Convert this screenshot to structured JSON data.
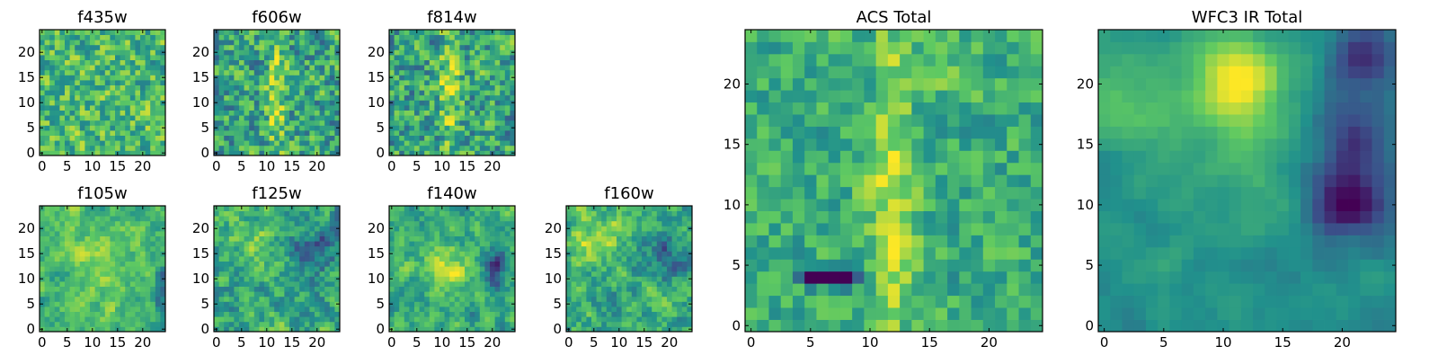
{
  "colormap": {
    "name": "viridis",
    "stops": [
      "#440154",
      "#3b528b",
      "#21918c",
      "#5ec962",
      "#fde725"
    ]
  },
  "chart_data": [
    {
      "type": "heatmap",
      "title": "f435w",
      "grid_size": 25,
      "value_scale": "normalized 0-1",
      "xticks": [
        "0",
        "5",
        "10",
        "15",
        "20"
      ],
      "yticks": [
        "0",
        "5",
        "10",
        "15",
        "20"
      ],
      "xlim": [
        0,
        25
      ],
      "ylim": [
        0,
        25
      ],
      "grid": false,
      "pattern": {
        "mean": 0.68,
        "noise": 0.26,
        "smooth": 0.15,
        "seed": 11,
        "blobs": []
      }
    },
    {
      "type": "heatmap",
      "title": "f606w",
      "grid_size": 25,
      "value_scale": "normalized 0-1",
      "xticks": [
        "0",
        "5",
        "10",
        "15",
        "20"
      ],
      "yticks": [
        "0",
        "5",
        "10",
        "15",
        "20"
      ],
      "xlim": [
        0,
        25
      ],
      "ylim": [
        0,
        25
      ],
      "grid": false,
      "pattern": {
        "mean": 0.58,
        "noise": 0.3,
        "smooth": 0.2,
        "seed": 23,
        "blobs": [
          {
            "cx": 12.5,
            "cy": 12,
            "sx": 1.3,
            "sy": 9,
            "amp": 0.3
          }
        ]
      }
    },
    {
      "type": "heatmap",
      "title": "f814w",
      "grid_size": 25,
      "value_scale": "normalized 0-1",
      "xticks": [
        "0",
        "5",
        "10",
        "15",
        "20"
      ],
      "yticks": [
        "0",
        "5",
        "10",
        "15",
        "20"
      ],
      "xlim": [
        0,
        25
      ],
      "ylim": [
        0,
        25
      ],
      "grid": false,
      "pattern": {
        "mean": 0.58,
        "noise": 0.3,
        "smooth": 0.2,
        "seed": 37,
        "blobs": [
          {
            "cx": 12,
            "cy": 14,
            "sx": 1.4,
            "sy": 8,
            "amp": 0.3
          }
        ]
      }
    },
    {
      "type": "heatmap",
      "title": "f105w",
      "grid_size": 25,
      "value_scale": "normalized 0-1",
      "xticks": [
        "0",
        "5",
        "10",
        "15",
        "20"
      ],
      "yticks": [
        "0",
        "5",
        "10",
        "15",
        "20"
      ],
      "xlim": [
        0,
        25
      ],
      "ylim": [
        0,
        25
      ],
      "grid": false,
      "pattern": {
        "mean": 0.66,
        "noise": 0.22,
        "smooth": 0.55,
        "seed": 41,
        "blobs": [
          {
            "cx": 13,
            "cy": 14,
            "sx": 4,
            "sy": 6,
            "amp": 0.15
          },
          {
            "cx": 24,
            "cy": 9,
            "sx": 1,
            "sy": 3,
            "amp": -0.4
          }
        ]
      }
    },
    {
      "type": "heatmap",
      "title": "f125w",
      "grid_size": 25,
      "value_scale": "normalized 0-1",
      "xticks": [
        "0",
        "5",
        "10",
        "15",
        "20"
      ],
      "yticks": [
        "0",
        "5",
        "10",
        "15",
        "20"
      ],
      "xlim": [
        0,
        25
      ],
      "ylim": [
        0,
        25
      ],
      "grid": false,
      "pattern": {
        "mean": 0.6,
        "noise": 0.28,
        "smooth": 0.5,
        "seed": 53,
        "blobs": [
          {
            "cx": 20,
            "cy": 16,
            "sx": 3,
            "sy": 3,
            "amp": -0.35
          },
          {
            "cx": 7,
            "cy": 18,
            "sx": 3,
            "sy": 3,
            "amp": 0.2
          }
        ]
      }
    },
    {
      "type": "heatmap",
      "title": "f140w",
      "grid_size": 25,
      "value_scale": "normalized 0-1",
      "xticks": [
        "0",
        "5",
        "10",
        "15",
        "20"
      ],
      "yticks": [
        "0",
        "5",
        "10",
        "15",
        "20"
      ],
      "xlim": [
        0,
        25
      ],
      "ylim": [
        0,
        25
      ],
      "grid": false,
      "pattern": {
        "mean": 0.62,
        "noise": 0.25,
        "smooth": 0.55,
        "seed": 67,
        "blobs": [
          {
            "cx": 12,
            "cy": 13,
            "sx": 3,
            "sy": 3,
            "amp": 0.25
          },
          {
            "cx": 21,
            "cy": 13,
            "sx": 2,
            "sy": 3,
            "amp": -0.35
          }
        ]
      }
    },
    {
      "type": "heatmap",
      "title": "f160w",
      "grid_size": 25,
      "value_scale": "normalized 0-1",
      "xticks": [
        "0",
        "5",
        "10",
        "15",
        "20"
      ],
      "yticks": [
        "0",
        "5",
        "10",
        "15",
        "20"
      ],
      "xlim": [
        0,
        25
      ],
      "ylim": [
        0,
        25
      ],
      "grid": false,
      "pattern": {
        "mean": 0.62,
        "noise": 0.26,
        "smooth": 0.5,
        "seed": 79,
        "blobs": [
          {
            "cx": 5,
            "cy": 19,
            "sx": 4,
            "sy": 3,
            "amp": 0.25
          },
          {
            "cx": 20,
            "cy": 15,
            "sx": 3,
            "sy": 3,
            "amp": -0.35
          }
        ]
      }
    },
    {
      "type": "heatmap",
      "title": "ACS Total",
      "grid_size": 25,
      "value_scale": "normalized 0-1",
      "xticks": [
        "0",
        "5",
        "10",
        "15",
        "20"
      ],
      "yticks": [
        "0",
        "5",
        "10",
        "15",
        "20"
      ],
      "xlim": [
        0,
        25
      ],
      "ylim": [
        0,
        25
      ],
      "grid": false,
      "pattern": {
        "mean": 0.62,
        "noise": 0.2,
        "smooth": 0.25,
        "seed": 97,
        "blobs": [
          {
            "cx": 12.3,
            "cy": 11,
            "sx": 1.3,
            "sy": 10,
            "amp": 0.3
          },
          {
            "cx": 7,
            "cy": 4.5,
            "sx": 1.8,
            "sy": 0.5,
            "amp": -0.9
          },
          {
            "cx": 17,
            "cy": 22,
            "sx": 2.5,
            "sy": 2,
            "amp": 0.1
          }
        ]
      }
    },
    {
      "type": "heatmap",
      "title": "WFC3 IR Total",
      "grid_size": 25,
      "value_scale": "normalized 0-1",
      "xticks": [
        "0",
        "5",
        "10",
        "15",
        "20"
      ],
      "yticks": [
        "0",
        "5",
        "10",
        "15",
        "20"
      ],
      "xlim": [
        0,
        25
      ],
      "ylim": [
        0,
        25
      ],
      "grid": false,
      "pattern": {
        "mean": 0.5,
        "noise": 0.1,
        "smooth": 0.8,
        "seed": 131,
        "blobs": [
          {
            "cx": 11.5,
            "cy": 21,
            "sx": 2.5,
            "sy": 2.5,
            "amp": 0.45
          },
          {
            "cx": 12,
            "cy": 15,
            "sx": 3.5,
            "sy": 5,
            "amp": 0.15
          },
          {
            "cx": 3,
            "cy": 19,
            "sx": 3,
            "sy": 3,
            "amp": 0.2
          },
          {
            "cx": 21.5,
            "cy": 14,
            "sx": 2.5,
            "sy": 4,
            "amp": -0.35
          },
          {
            "cx": 22.5,
            "cy": 23,
            "sx": 2,
            "sy": 2,
            "amp": -0.3
          },
          {
            "cx": 20.5,
            "cy": 10,
            "sx": 2,
            "sy": 1.5,
            "amp": -0.3
          }
        ]
      }
    }
  ]
}
